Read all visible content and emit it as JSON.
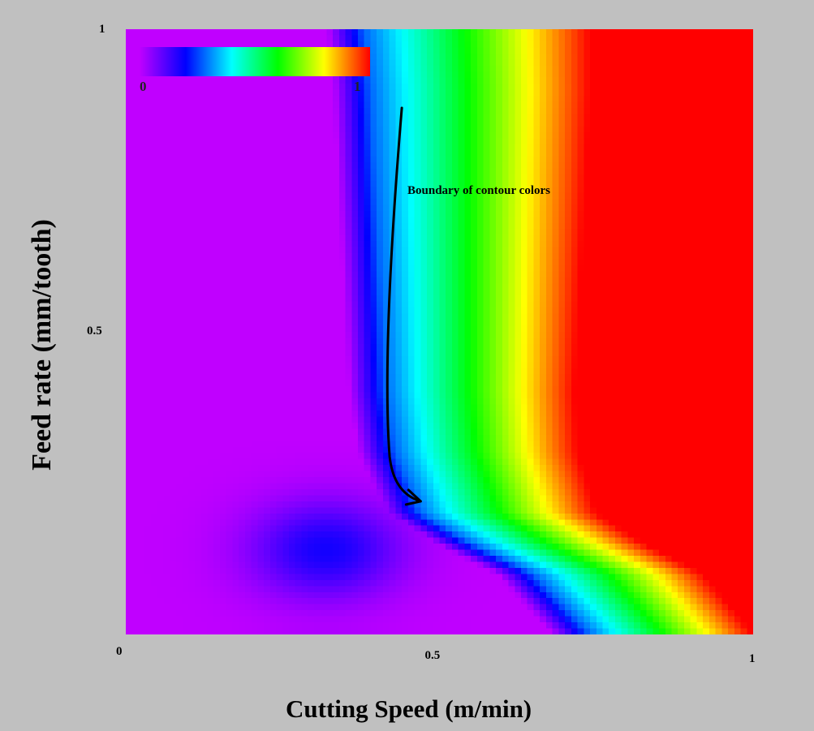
{
  "chart_data": {
    "type": "heatmap",
    "title": "",
    "xlabel": "Cutting Speed (m/min)",
    "ylabel": "Feed rate (mm/tooth)",
    "xlim": [
      0,
      1
    ],
    "ylim": [
      0,
      1
    ],
    "x_ticks": [
      {
        "value": 0,
        "label": "0"
      },
      {
        "value": 0.5,
        "label": "0.5"
      },
      {
        "value": 1,
        "label": "1"
      }
    ],
    "y_ticks": [
      {
        "value": 0.5,
        "label": "0.5"
      },
      {
        "value": 1,
        "label": "1"
      }
    ],
    "grid": false,
    "colorbar": {
      "placement": "top-left inside plot",
      "min_label": "0",
      "max_label": "1",
      "colors": [
        "#c000ff",
        "#0000ff",
        "#00ffff",
        "#00ff00",
        "#ffff00",
        "#ff0000"
      ]
    },
    "boundary_contour_level": 0.28,
    "boundary_contour": [
      {
        "x": 0.38,
        "y": 1.0
      },
      {
        "x": 0.39,
        "y": 0.9
      },
      {
        "x": 0.395,
        "y": 0.8
      },
      {
        "x": 0.4,
        "y": 0.7
      },
      {
        "x": 0.405,
        "y": 0.6
      },
      {
        "x": 0.41,
        "y": 0.5
      },
      {
        "x": 0.415,
        "y": 0.4
      },
      {
        "x": 0.43,
        "y": 0.3
      },
      {
        "x": 0.47,
        "y": 0.2
      },
      {
        "x": 0.55,
        "y": 0.15
      },
      {
        "x": 0.65,
        "y": 0.1
      },
      {
        "x": 0.74,
        "y": 0.0
      }
    ],
    "annotations": [
      {
        "text": "Boundary of contour colors",
        "arrow_from": {
          "x": 0.44,
          "y": 0.87
        },
        "arrow_to": {
          "x": 0.47,
          "y": 0.22
        }
      }
    ]
  }
}
